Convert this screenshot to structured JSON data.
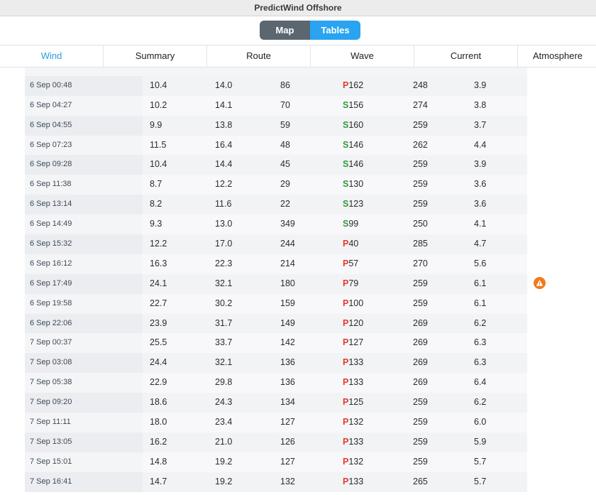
{
  "window": {
    "title": "PredictWind Offshore"
  },
  "view_toggle": {
    "map_label": "Map",
    "tables_label": "Tables"
  },
  "tabs": [
    {
      "label": "Wind"
    },
    {
      "label": "Summary"
    },
    {
      "label": "Route"
    },
    {
      "label": "Wave"
    },
    {
      "label": "Current"
    },
    {
      "label": "Atmosphere"
    }
  ],
  "colors": {
    "accent": "#2aa3f0",
    "port": "#e23b2e",
    "starboard": "#2e9b3b",
    "warning": "#f07a1c"
  },
  "table": {
    "rows": [
      {
        "time": "6 Sep 00:48",
        "tws": "10.4",
        "gust": "14.0",
        "twd": "86",
        "side": "P",
        "twa": "162",
        "cog": "248",
        "sog": "3.9"
      },
      {
        "time": "6 Sep 04:27",
        "tws": "10.2",
        "gust": "14.1",
        "twd": "70",
        "side": "S",
        "twa": "156",
        "cog": "274",
        "sog": "3.8"
      },
      {
        "time": "6 Sep 04:55",
        "tws": "9.9",
        "gust": "13.8",
        "twd": "59",
        "side": "S",
        "twa": "160",
        "cog": "259",
        "sog": "3.7"
      },
      {
        "time": "6 Sep 07:23",
        "tws": "11.5",
        "gust": "16.4",
        "twd": "48",
        "side": "S",
        "twa": "146",
        "cog": "262",
        "sog": "4.4"
      },
      {
        "time": "6 Sep 09:28",
        "tws": "10.4",
        "gust": "14.4",
        "twd": "45",
        "side": "S",
        "twa": "146",
        "cog": "259",
        "sog": "3.9"
      },
      {
        "time": "6 Sep 11:38",
        "tws": "8.7",
        "gust": "12.2",
        "twd": "29",
        "side": "S",
        "twa": "130",
        "cog": "259",
        "sog": "3.6"
      },
      {
        "time": "6 Sep 13:14",
        "tws": "8.2",
        "gust": "11.6",
        "twd": "22",
        "side": "S",
        "twa": "123",
        "cog": "259",
        "sog": "3.6"
      },
      {
        "time": "6 Sep 14:49",
        "tws": "9.3",
        "gust": "13.0",
        "twd": "349",
        "side": "S",
        "twa": "99",
        "cog": "250",
        "sog": "4.1"
      },
      {
        "time": "6 Sep 15:32",
        "tws": "12.2",
        "gust": "17.0",
        "twd": "244",
        "side": "P",
        "twa": "40",
        "cog": "285",
        "sog": "4.7"
      },
      {
        "time": "6 Sep 16:12",
        "tws": "16.3",
        "gust": "22.3",
        "twd": "214",
        "side": "P",
        "twa": "57",
        "cog": "270",
        "sog": "5.6"
      },
      {
        "time": "6 Sep 17:49",
        "tws": "24.1",
        "gust": "32.1",
        "twd": "180",
        "side": "P",
        "twa": "79",
        "cog": "259",
        "sog": "6.1"
      },
      {
        "time": "6 Sep 19:58",
        "tws": "22.7",
        "gust": "30.2",
        "twd": "159",
        "side": "P",
        "twa": "100",
        "cog": "259",
        "sog": "6.1"
      },
      {
        "time": "6 Sep 22:06",
        "tws": "23.9",
        "gust": "31.7",
        "twd": "149",
        "side": "P",
        "twa": "120",
        "cog": "269",
        "sog": "6.2"
      },
      {
        "time": "7 Sep 00:37",
        "tws": "25.5",
        "gust": "33.7",
        "twd": "142",
        "side": "P",
        "twa": "127",
        "cog": "269",
        "sog": "6.3"
      },
      {
        "time": "7 Sep 03:08",
        "tws": "24.4",
        "gust": "32.1",
        "twd": "136",
        "side": "P",
        "twa": "133",
        "cog": "269",
        "sog": "6.3"
      },
      {
        "time": "7 Sep 05:38",
        "tws": "22.9",
        "gust": "29.8",
        "twd": "136",
        "side": "P",
        "twa": "133",
        "cog": "269",
        "sog": "6.4"
      },
      {
        "time": "7 Sep 09:20",
        "tws": "18.6",
        "gust": "24.3",
        "twd": "134",
        "side": "P",
        "twa": "125",
        "cog": "259",
        "sog": "6.2"
      },
      {
        "time": "7 Sep 11:11",
        "tws": "18.0",
        "gust": "23.4",
        "twd": "127",
        "side": "P",
        "twa": "132",
        "cog": "259",
        "sog": "6.0"
      },
      {
        "time": "7 Sep 13:05",
        "tws": "16.2",
        "gust": "21.0",
        "twd": "126",
        "side": "P",
        "twa": "133",
        "cog": "259",
        "sog": "5.9"
      },
      {
        "time": "7 Sep 15:01",
        "tws": "14.8",
        "gust": "19.2",
        "twd": "127",
        "side": "P",
        "twa": "132",
        "cog": "259",
        "sog": "5.7"
      },
      {
        "time": "7 Sep 16:41",
        "tws": "14.7",
        "gust": "19.2",
        "twd": "132",
        "side": "P",
        "twa": "133",
        "cog": "265",
        "sog": "5.7"
      }
    ]
  },
  "warning": {
    "icon": "warning-icon",
    "row_time": "6 Sep 17:49"
  }
}
